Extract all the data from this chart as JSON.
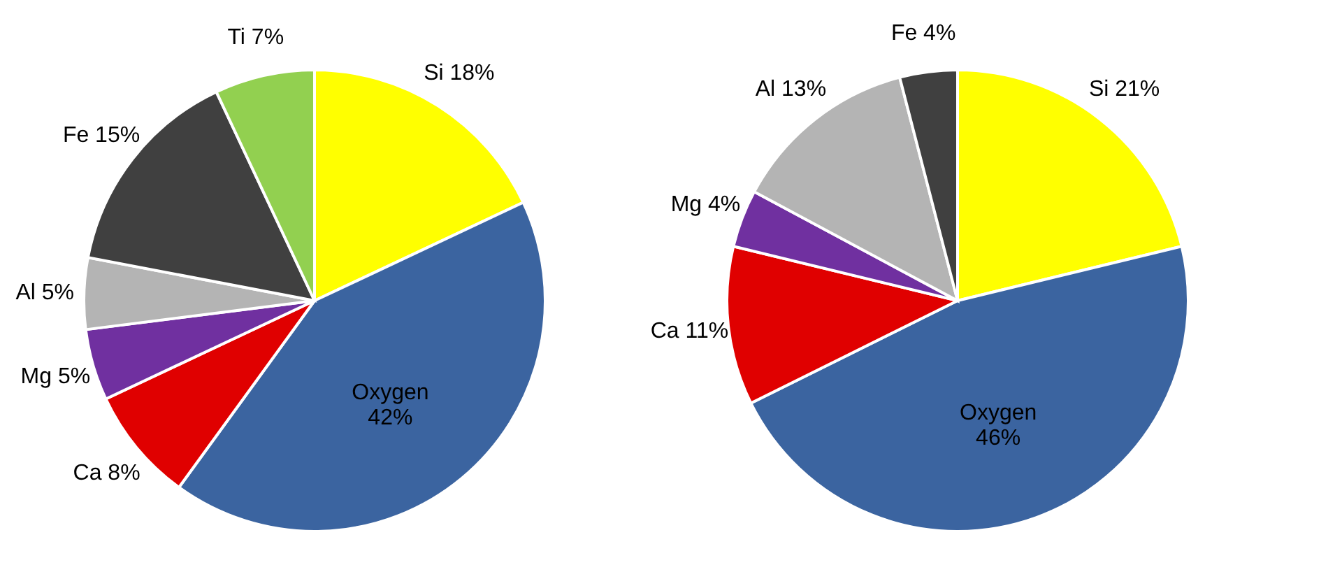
{
  "chart_data": [
    {
      "type": "pie",
      "categories": [
        "Si",
        "Oxygen",
        "Ca",
        "Mg",
        "Al",
        "Fe",
        "Ti"
      ],
      "values": [
        18,
        42,
        8,
        5,
        5,
        15,
        7
      ],
      "value_labels": [
        "18%",
        "42%",
        "8%",
        "5%",
        "5%",
        "15%",
        "7%"
      ],
      "colors": [
        "#ffff00",
        "#3b64a0",
        "#e00000",
        "#7030a0",
        "#b4b4b4",
        "#404040",
        "#92d050"
      ]
    },
    {
      "type": "pie",
      "categories": [
        "Si",
        "Oxygen",
        "Ca",
        "Mg",
        "Al",
        "Fe"
      ],
      "values": [
        21,
        46,
        11,
        4,
        13,
        4
      ],
      "value_labels": [
        "21%",
        "46%",
        "11%",
        "4%",
        "13%",
        "4%"
      ],
      "colors": [
        "#ffff00",
        "#3b64a0",
        "#e00000",
        "#7030a0",
        "#b4b4b4",
        "#404040"
      ]
    }
  ]
}
